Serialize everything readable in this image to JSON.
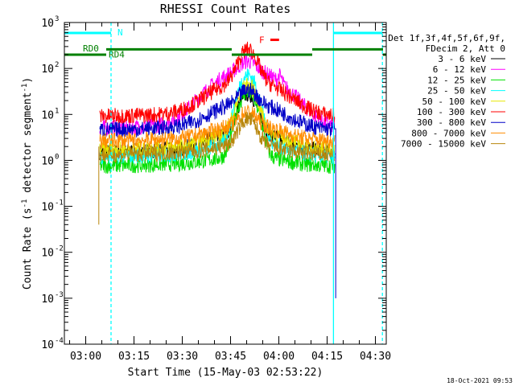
{
  "chart_data": {
    "type": "line",
    "title": "RHESSI Count Rates",
    "xlabel": "Start Time (15-May-03 02:53:22)",
    "ylabel_prefix": "Count Rate (s",
    "ylabel_sup1": "-1",
    "ylabel_mid": " detector segment",
    "ylabel_sup2": "-1",
    "ylabel_suffix": ")",
    "yscale": "log",
    "ylim": [
      0.0001,
      1000
    ],
    "xlim_minutes": [
      0,
      100
    ],
    "x_ticks": [
      {
        "label": "03:00",
        "minute": 6.63
      },
      {
        "label": "03:15",
        "minute": 21.63
      },
      {
        "label": "03:30",
        "minute": 36.63
      },
      {
        "label": "03:45",
        "minute": 51.63
      },
      {
        "label": "04:00",
        "minute": 66.63
      },
      {
        "label": "04:15",
        "minute": 81.63
      },
      {
        "label": "04:30",
        "minute": 96.63
      }
    ],
    "y_ticks": [
      {
        "base": "10",
        "exp": "-4",
        "value": 0.0001
      },
      {
        "base": "10",
        "exp": "-3",
        "value": 0.001
      },
      {
        "base": "10",
        "exp": "-2",
        "value": 0.01
      },
      {
        "base": "10",
        "exp": "-1",
        "value": 0.1
      },
      {
        "base": "10",
        "exp": "0",
        "value": 1
      },
      {
        "base": "10",
        "exp": "1",
        "value": 10
      },
      {
        "base": "10",
        "exp": "2",
        "value": 100
      },
      {
        "base": "10",
        "exp": "3",
        "value": 1000
      }
    ],
    "legend_header": [
      "Det 1f,3f,4f,5f,6f,9f,",
      "FDecim 2, Att 0"
    ],
    "series": [
      {
        "name": "3 - 6 keV",
        "color": "#000000",
        "base": 1.5,
        "peak": 25,
        "hump": 4
      },
      {
        "name": "6 - 12 keV",
        "color": "#ff00ff",
        "base": 5.0,
        "peak": 55,
        "hump": 30
      },
      {
        "name": "12 - 25 keV",
        "color": "#00e000",
        "base": 0.75,
        "peak": 30,
        "hump": 2
      },
      {
        "name": "25 - 50 keV",
        "color": "#00ffff",
        "base": 1.2,
        "peak": 70,
        "hump": 3
      },
      {
        "name": "50 - 100 keV",
        "color": "#e8e800",
        "base": 1.7,
        "peak": 40,
        "hump": 4
      },
      {
        "name": "100 - 300 keV",
        "color": "#ff0000",
        "base": 9.0,
        "peak": 210,
        "hump": 10
      },
      {
        "name": "300 - 800 keV",
        "color": "#0000c8",
        "base": 4.5,
        "peak": 20,
        "hump": 6
      },
      {
        "name": "800 - 7000 keV",
        "color": "#ff8c00",
        "base": 2.6,
        "peak": 8,
        "hump": 3
      },
      {
        "name": "7000 - 15000 keV",
        "color": "#b8860b",
        "base": 1.3,
        "peak": 7,
        "hump": 2
      }
    ],
    "data_interval_minutes": [
      11,
      84
    ],
    "flare_peak_minute": 57,
    "secondary_peak_minute": 67,
    "night_markers": [
      {
        "label": "N",
        "start_minute": 0,
        "end_minute": 14.5
      },
      {
        "label": "",
        "start_minute": 83.6,
        "end_minute": 98.8
      }
    ],
    "saa_lines_minutes": [
      14.5,
      83.6,
      98.8
    ],
    "decimation_bars": [
      {
        "label": "RD0",
        "start_minute": 0,
        "end_minute": 13,
        "level": 200
      },
      {
        "label": "RD4",
        "start_minute": 13,
        "end_minute": 52,
        "level": 260
      },
      {
        "label": "",
        "start_minute": 52,
        "end_minute": 77,
        "level": 200
      },
      {
        "label": "",
        "start_minute": 77,
        "end_minute": 99,
        "level": 260
      },
      {
        "label": "",
        "start_minute": 99,
        "end_minute": 100,
        "level": 200
      }
    ],
    "flare_flag": {
      "label": "F",
      "start_minute": 64,
      "end_minute": 66.7,
      "level": 420
    },
    "colors": {
      "night": "#00ffff",
      "decim": "#008000",
      "flag": "#ff0000",
      "axis": "#000000"
    }
  },
  "timestamp": "18-Oct-2021 09:53"
}
